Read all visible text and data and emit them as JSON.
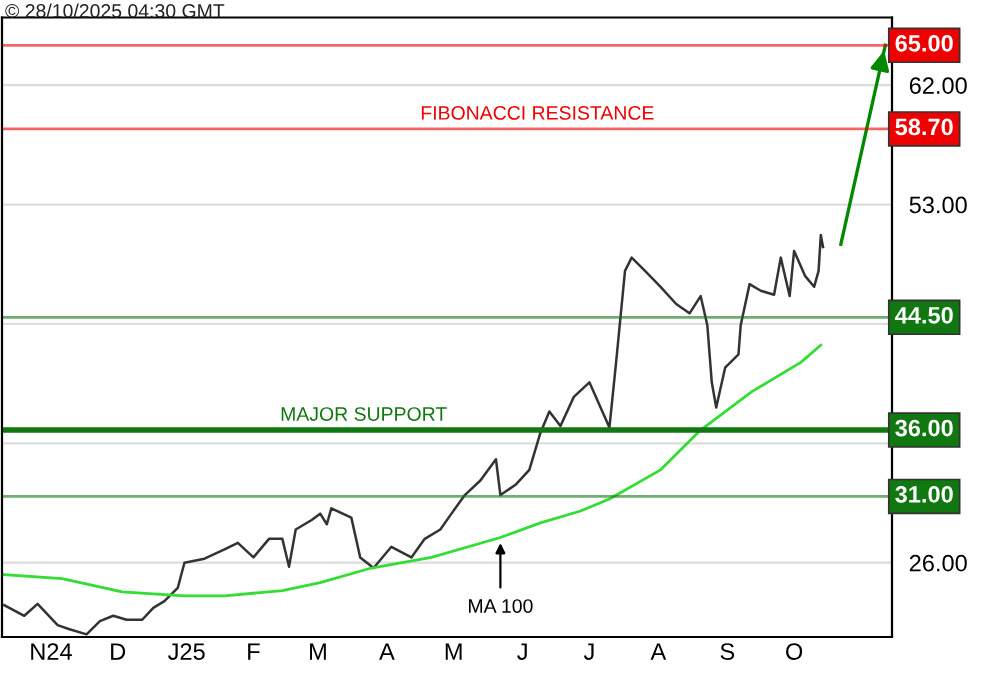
{
  "chart_data": {
    "type": "line",
    "title": "© 28/10/2025 04:30 GMT",
    "xlim": [
      "2024-10-24",
      "2025-11-28"
    ],
    "ylim": [
      20.4,
      67.1
    ],
    "xticks": [
      {
        "value": "2024-11-15",
        "label": "N24"
      },
      {
        "value": "2024-12-15",
        "label": "D"
      },
      {
        "value": "2025-01-15",
        "label": "J25"
      },
      {
        "value": "2025-02-14",
        "label": "F"
      },
      {
        "value": "2025-03-15",
        "label": "M"
      },
      {
        "value": "2025-04-15",
        "label": "A"
      },
      {
        "value": "2025-05-15",
        "label": "M"
      },
      {
        "value": "2025-06-15",
        "label": "J"
      },
      {
        "value": "2025-07-15",
        "label": "J"
      },
      {
        "value": "2025-08-15",
        "label": "A"
      },
      {
        "value": "2025-09-15",
        "label": "S"
      },
      {
        "value": "2025-10-15",
        "label": "O"
      }
    ],
    "yticks": [
      {
        "value": 26,
        "label": "26.00"
      },
      {
        "value": 35,
        "label": null
      },
      {
        "value": 44,
        "label": null
      },
      {
        "value": 53,
        "label": "53.00"
      },
      {
        "value": 62,
        "label": "62.00"
      }
    ],
    "grid": "y",
    "marker": "none",
    "line_style": "solid",
    "series": [
      {
        "color": "#333333",
        "x": [
          "2024-10-25",
          "2024-11-03",
          "2024-11-09",
          "2024-11-18",
          "2024-11-23",
          "2024-12-01",
          "2024-12-07",
          "2024-12-13",
          "2024-12-19",
          "2024-12-26",
          "2024-12-31",
          "2025-01-05",
          "2025-01-11",
          "2025-01-14",
          "2025-01-23",
          "2025-02-01",
          "2025-02-07",
          "2025-02-14",
          "2025-02-21",
          "2025-02-27",
          "2025-03-02",
          "2025-03-05",
          "2025-03-12",
          "2025-03-16",
          "2025-03-19",
          "2025-03-21",
          "2025-03-30",
          "2025-04-03",
          "2025-04-09",
          "2025-04-17",
          "2025-04-26",
          "2025-05-02",
          "2025-05-09",
          "2025-05-14",
          "2025-05-20",
          "2025-05-27",
          "2025-06-03",
          "2025-06-05",
          "2025-06-12",
          "2025-06-18",
          "2025-06-23",
          "2025-06-27",
          "2025-07-02",
          "2025-07-08",
          "2025-07-15",
          "2025-07-24",
          "2025-07-27",
          "2025-07-31",
          "2025-08-03",
          "2025-08-09",
          "2025-08-16",
          "2025-08-23",
          "2025-08-29",
          "2025-09-03",
          "2025-09-06",
          "2025-09-08",
          "2025-09-10",
          "2025-09-14",
          "2025-09-20",
          "2025-09-21",
          "2025-09-25",
          "2025-09-30",
          "2025-10-06",
          "2025-10-09",
          "2025-10-13",
          "2025-10-15",
          "2025-10-20",
          "2025-10-24",
          "2025-10-26",
          "2025-10-27",
          "2025-10-28"
        ],
        "values": [
          22.8,
          22.0,
          22.9,
          21.3,
          21.0,
          20.6,
          21.6,
          22.0,
          21.7,
          21.7,
          22.6,
          23.1,
          24.1,
          26.0,
          26.3,
          27.0,
          27.5,
          26.4,
          27.8,
          27.8,
          25.7,
          28.5,
          29.2,
          29.7,
          28.9,
          30.1,
          29.4,
          26.4,
          25.6,
          27.2,
          26.4,
          27.8,
          28.5,
          29.7,
          31.1,
          32.2,
          33.8,
          31.1,
          31.9,
          33.0,
          35.8,
          37.4,
          36.3,
          38.5,
          39.6,
          36.2,
          41.1,
          48.0,
          49.0,
          48.0,
          46.8,
          45.5,
          44.8,
          46.1,
          43.9,
          39.6,
          37.7,
          40.7,
          41.7,
          43.9,
          47.0,
          46.5,
          46.2,
          49.0,
          46.1,
          49.5,
          47.6,
          46.8,
          48.0,
          50.7,
          49.8
        ]
      },
      {
        "color": "#33dd33",
        "x": [
          "2024-10-25",
          "2024-11-20",
          "2024-12-17",
          "2025-01-14",
          "2025-02-01",
          "2025-02-27",
          "2025-03-16",
          "2025-04-08",
          "2025-05-05",
          "2025-06-05",
          "2025-06-23",
          "2025-07-11",
          "2025-07-24",
          "2025-08-16",
          "2025-09-03",
          "2025-09-26",
          "2025-10-18",
          "2025-10-27"
        ],
        "values": [
          25.1,
          24.8,
          23.8,
          23.5,
          23.5,
          23.9,
          24.5,
          25.6,
          26.4,
          27.9,
          29.0,
          29.9,
          30.8,
          33.0,
          36.0,
          38.9,
          41.1,
          42.4
        ]
      },
      {
        "color": "#008800",
        "x": [
          "2025-11-05",
          "2025-11-25"
        ],
        "values": [
          50.0,
          65.0
        ]
      }
    ],
    "ref_lines": [
      {
        "axis": "y",
        "value": 65.0,
        "label": "65.00",
        "color": "#ee0000"
      },
      {
        "axis": "y",
        "value": 58.7,
        "label": "58.70",
        "color": "#ee0000"
      },
      {
        "axis": "y",
        "value": 44.5,
        "label": "44.50",
        "color": "#117711"
      },
      {
        "axis": "y",
        "value": 36.0,
        "label": "36.00",
        "color": "#117711"
      },
      {
        "axis": "y",
        "value": 31.0,
        "label": "31.00",
        "color": "#117711"
      }
    ],
    "annotations": [
      {
        "text": "FIBONACCI RESISTANCE",
        "x": "2025-04-30",
        "y": 58.7
      },
      {
        "text": "MAJOR SUPPORT",
        "x": "2025-02-26",
        "y": 36.0
      },
      {
        "text": "MA 100",
        "x": "2025-06-05",
        "y": 27.9
      }
    ]
  }
}
